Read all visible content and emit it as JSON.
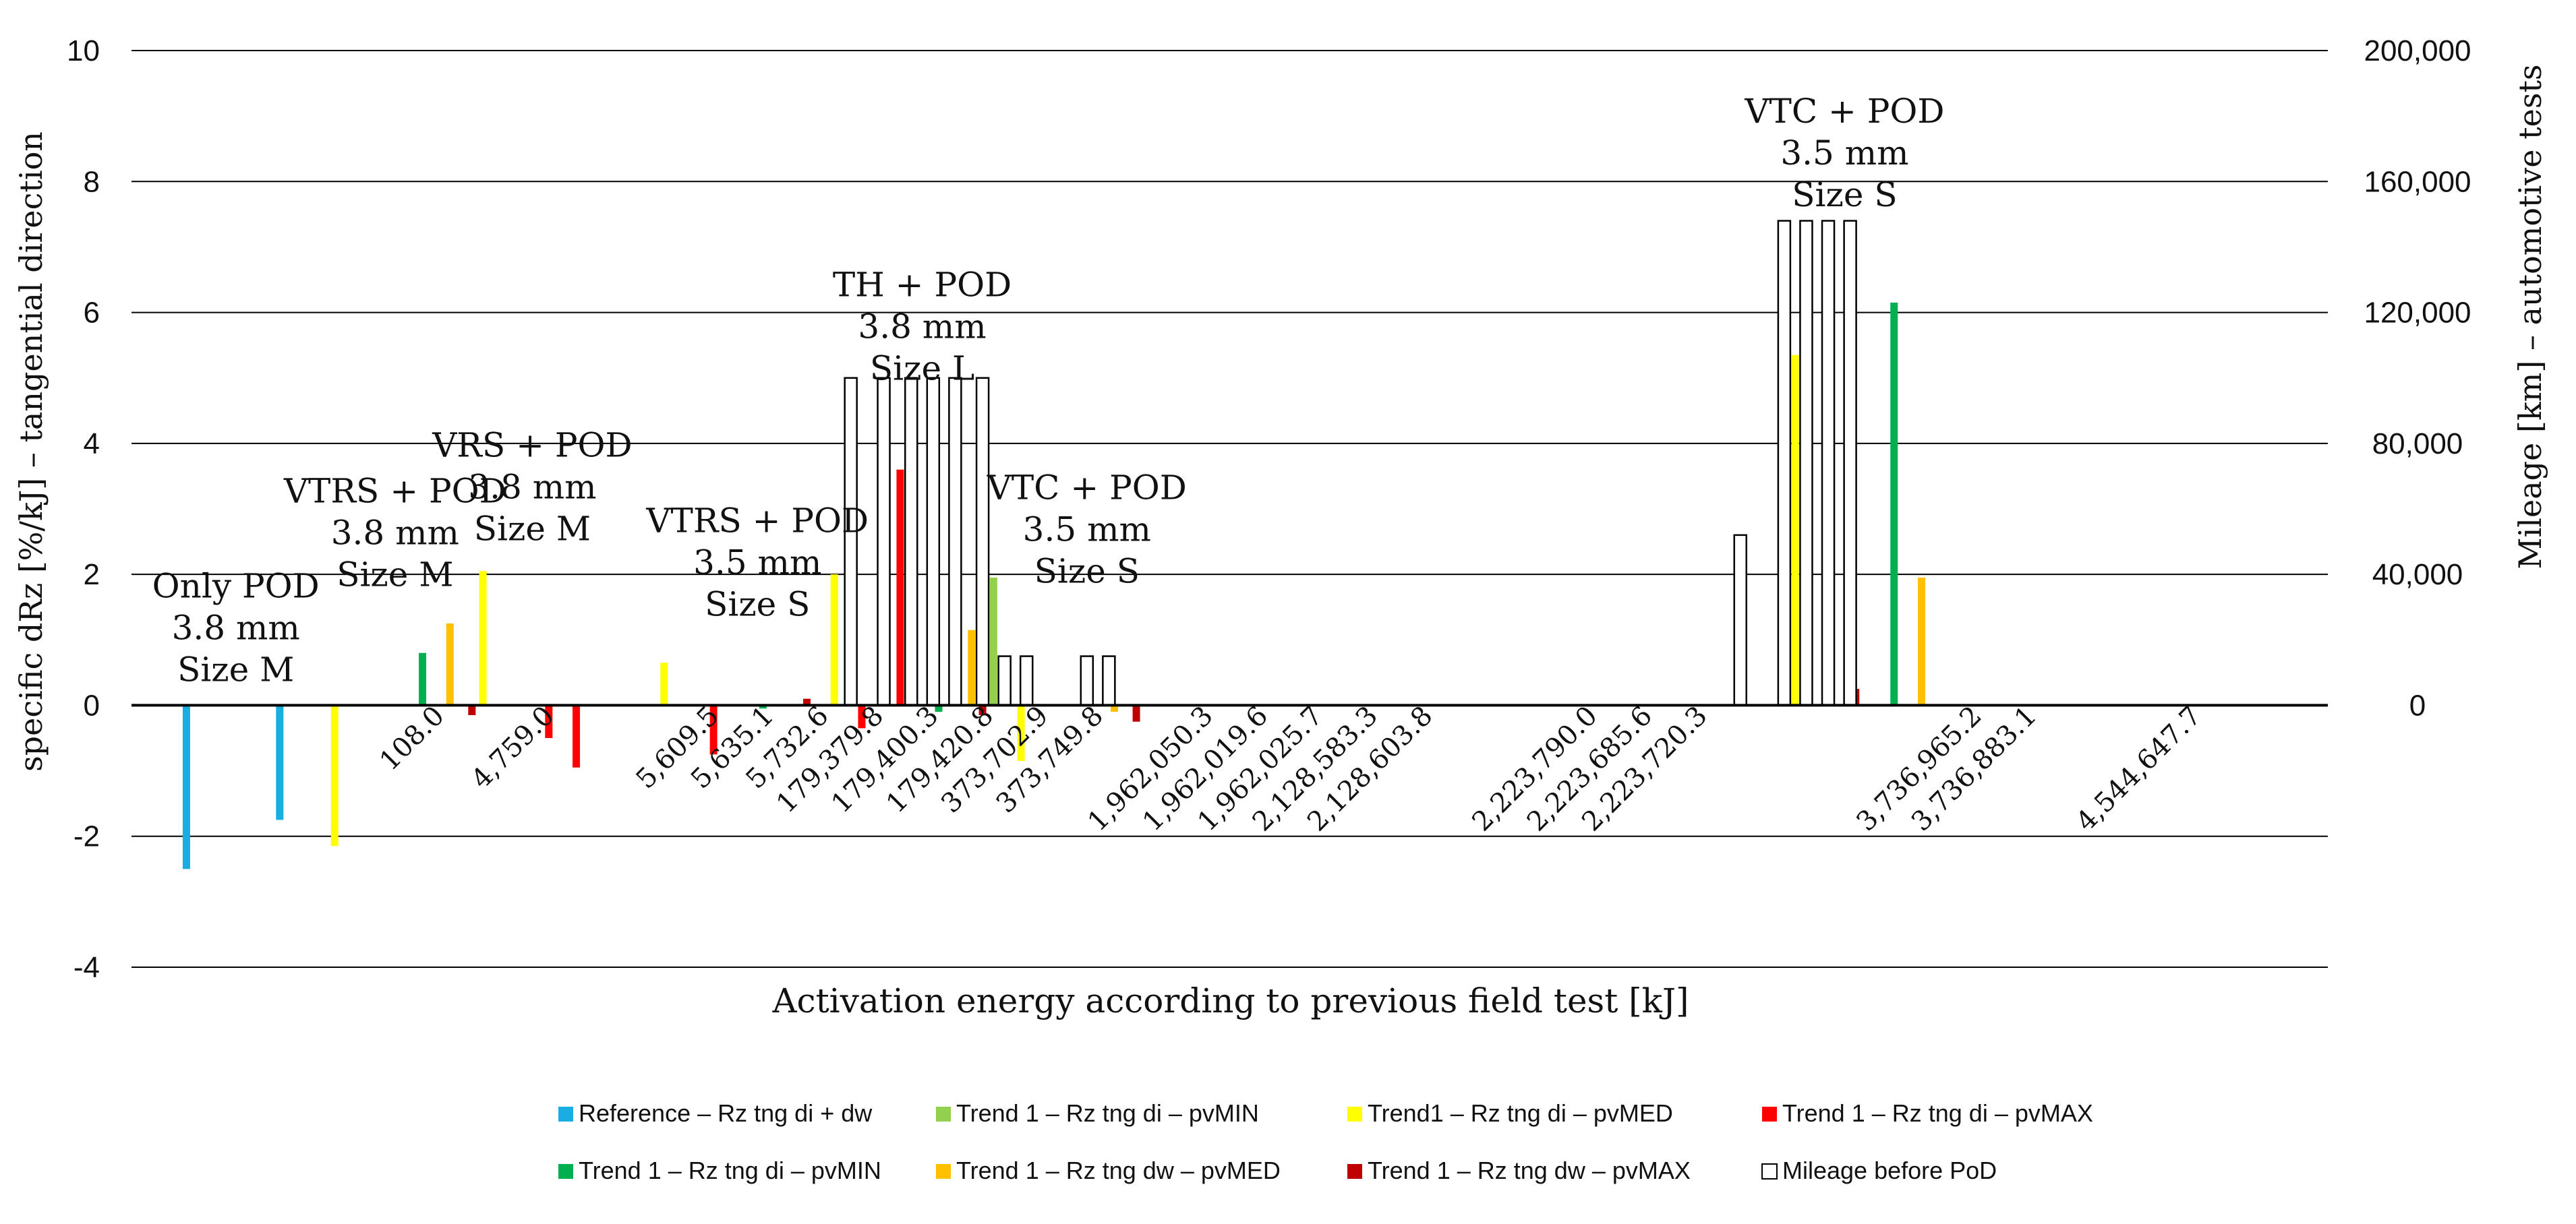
{
  "chart_data": {
    "type": "bar",
    "xlabel": "Activation energy according to previous field test [kJ]",
    "ylabel": "specific dRz [%/kJ] – tangential direction",
    "ylabel_right": "Mileage [km] – automotive tests",
    "ylim": [
      -4,
      10
    ],
    "ylim_right": [
      0,
      200000
    ],
    "left_ticks": [
      "-4",
      "-2",
      "0",
      "2",
      "4",
      "6",
      "8",
      "10"
    ],
    "right_ticks": [
      "0",
      "40,000",
      "80,000",
      "120,000",
      "160,000",
      "200,000"
    ],
    "grid": true,
    "legend_position": "bottom",
    "slots": 40,
    "category_labels": [
      {
        "label": "108.0",
        "slot": 5
      },
      {
        "label": "4,759.0",
        "slot": 7
      },
      {
        "label": "5,609.5",
        "slot": 10
      },
      {
        "label": "5,635.1",
        "slot": 11
      },
      {
        "label": "5,732.6",
        "slot": 12
      },
      {
        "label": "179,379.8",
        "slot": 13
      },
      {
        "label": "179,400.3",
        "slot": 14
      },
      {
        "label": "179,420.8",
        "slot": 15
      },
      {
        "label": "373,702.9",
        "slot": 16
      },
      {
        "label": "373,749.8",
        "slot": 17
      },
      {
        "label": "1,962,050.3",
        "slot": 19
      },
      {
        "label": "1,962,019.6",
        "slot": 20
      },
      {
        "label": "1,962,025.7",
        "slot": 21
      },
      {
        "label": "2,128,583.3",
        "slot": 22
      },
      {
        "label": "2,128,603.8",
        "slot": 23
      },
      {
        "label": "2,223,790.0",
        "slot": 26
      },
      {
        "label": "2,223,685.6",
        "slot": 27
      },
      {
        "label": "2,223,720.3",
        "slot": 28
      },
      {
        "label": "3,736,965.2",
        "slot": 33
      },
      {
        "label": "3,736,883.1",
        "slot": 34
      },
      {
        "label": "4,544,647.7",
        "slot": 37
      }
    ],
    "groups": [
      {
        "label": [
          "Only POD",
          "3.8 mm",
          "Size M"
        ],
        "slot": 1.4,
        "value": 2.1
      },
      {
        "label": [
          "VTRS + POD",
          "3.8 mm",
          "Size M"
        ],
        "slot": 4.3,
        "value": 3.55
      },
      {
        "label": [
          "VRS + POD",
          "3.8 mm",
          "Size M"
        ],
        "slot": 6.8,
        "value": 4.25
      },
      {
        "label": [
          "VTRS + POD",
          "3.5 mm",
          "Size S"
        ],
        "slot": 10.9,
        "value": 3.1
      },
      {
        "label": [
          "TH + POD",
          "3.8 mm",
          "Size L"
        ],
        "slot": 13.9,
        "value": 6.7
      },
      {
        "label": [
          "VTC + POD",
          "3.5 mm",
          "Size S"
        ],
        "slot": 16.9,
        "value": 3.6
      },
      {
        "label": [
          "VTC + POD",
          "3.5 mm",
          "Size S"
        ],
        "slot": 30.7,
        "value": 9.35
      }
    ],
    "series": [
      {
        "name": "Reference – Rz tng di + dw",
        "color": "#1aade4",
        "points": [
          {
            "slot": 0.5,
            "value": -2.5
          },
          {
            "slot": 2.2,
            "value": -1.75
          }
        ]
      },
      {
        "name": "Trend 1 – Rz tng di – pvMIN",
        "color": "#92d050",
        "points": [
          {
            "slot": 15.2,
            "value": 1.95
          }
        ]
      },
      {
        "name": "Trend1 – Rz tng di – pvMED",
        "color": "#ffff00",
        "points": [
          {
            "slot": 3.2,
            "value": -2.15
          },
          {
            "slot": 5.9,
            "value": 2.05
          },
          {
            "slot": 9.2,
            "value": 0.65
          },
          {
            "slot": 12.3,
            "value": 2.0
          },
          {
            "slot": 15.7,
            "value": -0.85
          },
          {
            "slot": 29.8,
            "value": 5.35
          }
        ]
      },
      {
        "name": "Trend 1 – Rz tng di – pvMAX",
        "color": "#ff0000",
        "points": [
          {
            "slot": 7.1,
            "value": -0.5
          },
          {
            "slot": 7.6,
            "value": -0.95
          },
          {
            "slot": 10.1,
            "value": -0.75
          },
          {
            "slot": 12.8,
            "value": -0.35
          },
          {
            "slot": 13.5,
            "value": 3.6
          }
        ]
      },
      {
        "name": "Trend 1 – Rz tng di – pvMIN",
        "color": "#00b050",
        "points": [
          {
            "slot": 4.8,
            "value": 0.8
          },
          {
            "slot": 11.0,
            "value": -0.05
          },
          {
            "slot": 14.2,
            "value": -0.1
          },
          {
            "slot": 31.6,
            "value": 6.15
          }
        ]
      },
      {
        "name": "Trend 1 – Rz tng dw – pvMED",
        "color": "#ffc000",
        "points": [
          {
            "slot": 5.3,
            "value": 1.25
          },
          {
            "slot": 14.8,
            "value": 1.15
          },
          {
            "slot": 17.4,
            "value": -0.1
          },
          {
            "slot": 32.1,
            "value": 1.95
          }
        ]
      },
      {
        "name": "Trend 1 – Rz tng dw – pvMAX",
        "color": "#c00000",
        "points": [
          {
            "slot": 5.7,
            "value": -0.15
          },
          {
            "slot": 11.8,
            "value": 0.1
          },
          {
            "slot": 15.0,
            "value": -0.15
          },
          {
            "slot": 17.8,
            "value": -0.25
          },
          {
            "slot": 30.9,
            "value": 0.25
          }
        ]
      },
      {
        "name": "Mileage before PoD",
        "color": "#ffffff",
        "outline": "#000000",
        "axis": "right",
        "points": [
          {
            "slot": 12.6,
            "value": 100000
          },
          {
            "slot": 13.2,
            "value": 100000
          },
          {
            "slot": 13.7,
            "value": 100000
          },
          {
            "slot": 14.1,
            "value": 100000
          },
          {
            "slot": 14.5,
            "value": 100000
          },
          {
            "slot": 15.0,
            "value": 100000
          },
          {
            "slot": 15.4,
            "value": 15000
          },
          {
            "slot": 15.8,
            "value": 15000
          },
          {
            "slot": 16.9,
            "value": 15000
          },
          {
            "slot": 17.3,
            "value": 15000
          },
          {
            "slot": 28.8,
            "value": 52000
          },
          {
            "slot": 29.6,
            "value": 148000
          },
          {
            "slot": 30.0,
            "value": 148000
          },
          {
            "slot": 30.4,
            "value": 148000
          },
          {
            "slot": 30.8,
            "value": 148000
          }
        ]
      }
    ]
  }
}
